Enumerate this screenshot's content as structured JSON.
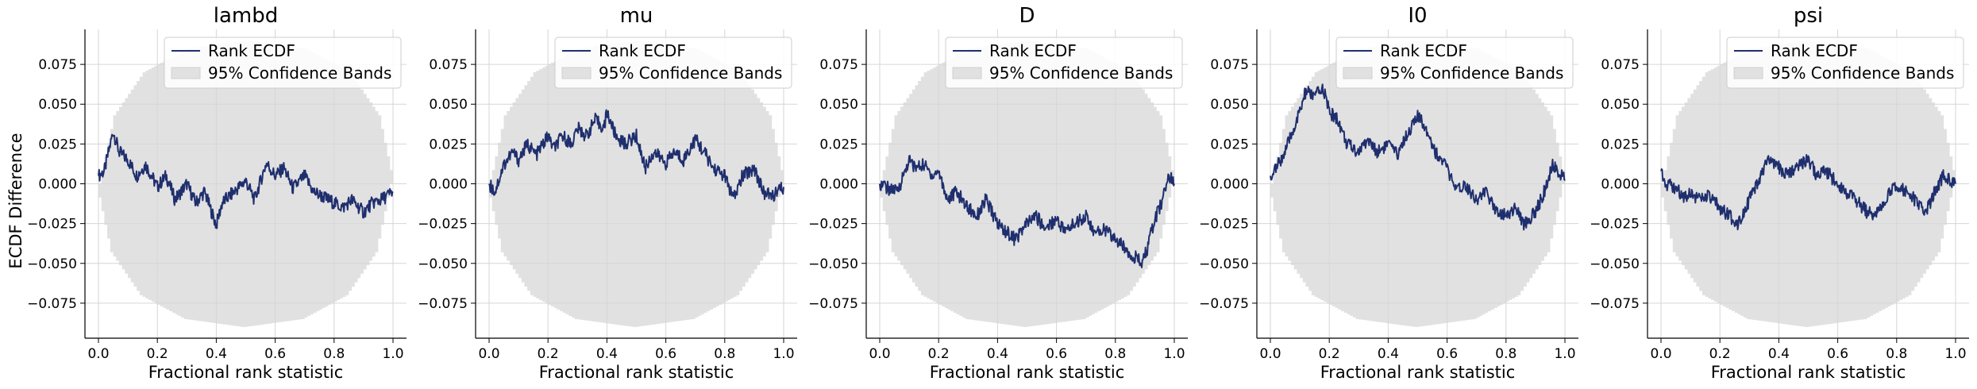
{
  "figure": {
    "ylabel": "ECDF Difference",
    "xlabel": "Fractional rank statistic",
    "legend": {
      "line": "Rank ECDF",
      "band": "95% Confidence Bands"
    },
    "colors": {
      "line": "#1f2f6e",
      "band": "#e1e1e1",
      "grid": "#d6d6d6"
    }
  },
  "chart_data": [
    {
      "type": "line",
      "title": "lambd",
      "xlabel": "Fractional rank statistic",
      "ylabel": "ECDF Difference",
      "xlim": [
        0,
        1
      ],
      "ylim": [
        -0.097,
        0.097
      ],
      "xticks": [
        "0.0",
        "0.2",
        "0.4",
        "0.6",
        "0.8",
        "1.0"
      ],
      "yticks": [
        "0.075",
        "0.050",
        "0.025",
        "0.000",
        "−0.025",
        "−0.050",
        "−0.075"
      ],
      "grid": true,
      "legend_position": "top-right",
      "series": [
        {
          "name": "Rank ECDF",
          "x": [
            0,
            0.02,
            0.05,
            0.07,
            0.1,
            0.13,
            0.16,
            0.2,
            0.23,
            0.26,
            0.3,
            0.33,
            0.36,
            0.4,
            0.42,
            0.46,
            0.5,
            0.53,
            0.57,
            0.6,
            0.63,
            0.66,
            0.7,
            0.73,
            0.76,
            0.8,
            0.83,
            0.86,
            0.9,
            0.93,
            0.96,
            1.0
          ],
          "y": [
            0.005,
            0.008,
            0.033,
            0.02,
            0.015,
            0.005,
            0.012,
            -0.002,
            0.005,
            -0.01,
            0.0,
            -0.012,
            -0.005,
            -0.026,
            -0.012,
            -0.005,
            0.002,
            -0.01,
            0.013,
            0.005,
            0.01,
            -0.003,
            0.005,
            -0.005,
            -0.008,
            -0.012,
            -0.015,
            -0.01,
            -0.018,
            -0.012,
            -0.01,
            -0.005
          ]
        },
        {
          "name": "95% Confidence Bands",
          "x": [
            0,
            0.05,
            0.15,
            0.3,
            0.5,
            0.7,
            0.85,
            0.95,
            1.0
          ],
          "upper": [
            0,
            0.043,
            0.07,
            0.085,
            0.09,
            0.085,
            0.07,
            0.043,
            0
          ],
          "lower": [
            0,
            -0.043,
            -0.07,
            -0.085,
            -0.09,
            -0.085,
            -0.07,
            -0.043,
            0
          ]
        }
      ]
    },
    {
      "type": "line",
      "title": "mu",
      "xlabel": "Fractional rank statistic",
      "ylabel": "",
      "xlim": [
        0,
        1
      ],
      "ylim": [
        -0.097,
        0.097
      ],
      "xticks": [
        "0.0",
        "0.2",
        "0.4",
        "0.6",
        "0.8",
        "1.0"
      ],
      "yticks": [
        "0.075",
        "0.050",
        "0.025",
        "0.000",
        "−0.025",
        "−0.050",
        "−0.075"
      ],
      "grid": true,
      "legend_position": "top-right",
      "series": [
        {
          "name": "Rank ECDF",
          "x": [
            0,
            0.02,
            0.05,
            0.08,
            0.1,
            0.13,
            0.16,
            0.2,
            0.22,
            0.25,
            0.28,
            0.3,
            0.33,
            0.36,
            0.39,
            0.4,
            0.43,
            0.46,
            0.5,
            0.53,
            0.56,
            0.6,
            0.63,
            0.66,
            0.7,
            0.73,
            0.76,
            0.8,
            0.83,
            0.86,
            0.9,
            0.93,
            0.96,
            1.0
          ],
          "y": [
            0.0,
            -0.005,
            0.012,
            0.02,
            0.015,
            0.025,
            0.018,
            0.03,
            0.022,
            0.03,
            0.025,
            0.035,
            0.03,
            0.04,
            0.035,
            0.045,
            0.03,
            0.025,
            0.03,
            0.01,
            0.02,
            0.013,
            0.02,
            0.015,
            0.028,
            0.02,
            0.01,
            0.005,
            -0.01,
            0.005,
            0.01,
            -0.005,
            -0.008,
            -0.002
          ]
        },
        {
          "name": "95% Confidence Bands",
          "x": [
            0,
            0.05,
            0.15,
            0.3,
            0.5,
            0.7,
            0.85,
            0.95,
            1.0
          ],
          "upper": [
            0,
            0.043,
            0.07,
            0.085,
            0.09,
            0.085,
            0.07,
            0.043,
            0
          ],
          "lower": [
            0,
            -0.043,
            -0.07,
            -0.085,
            -0.09,
            -0.085,
            -0.07,
            -0.043,
            0
          ]
        }
      ]
    },
    {
      "type": "line",
      "title": "D",
      "xlabel": "Fractional rank statistic",
      "ylabel": "",
      "xlim": [
        0,
        1
      ],
      "ylim": [
        -0.097,
        0.097
      ],
      "xticks": [
        "0.0",
        "0.2",
        "0.4",
        "0.6",
        "0.8",
        "1.0"
      ],
      "yticks": [
        "0.075",
        "0.050",
        "0.025",
        "0.000",
        "−0.025",
        "−0.050",
        "−0.075"
      ],
      "grid": true,
      "legend_position": "top-right",
      "series": [
        {
          "name": "Rank ECDF",
          "x": [
            0,
            0.03,
            0.06,
            0.08,
            0.1,
            0.12,
            0.15,
            0.18,
            0.2,
            0.23,
            0.26,
            0.3,
            0.33,
            0.36,
            0.4,
            0.43,
            0.46,
            0.5,
            0.53,
            0.56,
            0.6,
            0.63,
            0.66,
            0.7,
            0.73,
            0.76,
            0.8,
            0.83,
            0.86,
            0.89,
            0.91,
            0.93,
            0.96,
            0.98,
            1.0
          ],
          "y": [
            0.0,
            -0.003,
            -0.005,
            0.005,
            0.015,
            0.01,
            0.012,
            0.005,
            0.008,
            -0.01,
            -0.005,
            -0.015,
            -0.02,
            -0.01,
            -0.025,
            -0.03,
            -0.035,
            -0.025,
            -0.02,
            -0.028,
            -0.022,
            -0.03,
            -0.025,
            -0.02,
            -0.032,
            -0.028,
            -0.035,
            -0.04,
            -0.045,
            -0.05,
            -0.04,
            -0.025,
            -0.01,
            0.005,
            0.0
          ]
        },
        {
          "name": "95% Confidence Bands",
          "x": [
            0,
            0.05,
            0.15,
            0.3,
            0.5,
            0.7,
            0.85,
            0.95,
            1.0
          ],
          "upper": [
            0,
            0.043,
            0.07,
            0.085,
            0.09,
            0.085,
            0.07,
            0.043,
            0
          ],
          "lower": [
            0,
            -0.043,
            -0.07,
            -0.085,
            -0.09,
            -0.085,
            -0.07,
            -0.043,
            0
          ]
        }
      ]
    },
    {
      "type": "line",
      "title": "I0",
      "xlabel": "Fractional rank statistic",
      "ylabel": "",
      "xlim": [
        0,
        1
      ],
      "ylim": [
        -0.097,
        0.097
      ],
      "xticks": [
        "0.0",
        "0.2",
        "0.4",
        "0.6",
        "0.8",
        "1.0"
      ],
      "yticks": [
        "0.075",
        "0.050",
        "0.025",
        "0.000",
        "−0.025",
        "−0.050",
        "−0.075"
      ],
      "grid": true,
      "legend_position": "top-right",
      "series": [
        {
          "name": "Rank ECDF",
          "x": [
            0,
            0.02,
            0.05,
            0.08,
            0.1,
            0.12,
            0.15,
            0.18,
            0.2,
            0.23,
            0.26,
            0.3,
            0.33,
            0.36,
            0.4,
            0.43,
            0.46,
            0.5,
            0.53,
            0.56,
            0.6,
            0.63,
            0.66,
            0.7,
            0.73,
            0.76,
            0.8,
            0.83,
            0.86,
            0.9,
            0.93,
            0.96,
            1.0
          ],
          "y": [
            0.005,
            0.01,
            0.02,
            0.035,
            0.045,
            0.058,
            0.055,
            0.06,
            0.045,
            0.04,
            0.025,
            0.02,
            0.028,
            0.02,
            0.025,
            0.018,
            0.03,
            0.042,
            0.035,
            0.02,
            0.01,
            -0.005,
            0.0,
            -0.01,
            -0.005,
            -0.015,
            -0.02,
            -0.015,
            -0.025,
            -0.018,
            -0.005,
            0.012,
            0.002
          ]
        },
        {
          "name": "95% Confidence Bands",
          "x": [
            0,
            0.05,
            0.15,
            0.3,
            0.5,
            0.7,
            0.85,
            0.95,
            1.0
          ],
          "upper": [
            0,
            0.043,
            0.07,
            0.085,
            0.09,
            0.085,
            0.07,
            0.043,
            0
          ],
          "lower": [
            0,
            -0.043,
            -0.07,
            -0.085,
            -0.09,
            -0.085,
            -0.07,
            -0.043,
            0
          ]
        }
      ]
    },
    {
      "type": "line",
      "title": "psi",
      "xlabel": "Fractional rank statistic",
      "ylabel": "",
      "xlim": [
        0,
        1
      ],
      "ylim": [
        -0.097,
        0.097
      ],
      "xticks": [
        "0.0",
        "0.2",
        "0.4",
        "0.6",
        "0.8",
        "1.0"
      ],
      "yticks": [
        "0.075",
        "0.050",
        "0.025",
        "0.000",
        "−0.025",
        "−0.050",
        "−0.075"
      ],
      "grid": true,
      "legend_position": "top-right",
      "series": [
        {
          "name": "Rank ECDF",
          "x": [
            0,
            0.02,
            0.05,
            0.08,
            0.1,
            0.13,
            0.16,
            0.2,
            0.23,
            0.26,
            0.3,
            0.33,
            0.36,
            0.4,
            0.43,
            0.46,
            0.5,
            0.53,
            0.56,
            0.6,
            0.63,
            0.66,
            0.7,
            0.73,
            0.76,
            0.8,
            0.83,
            0.86,
            0.9,
            0.93,
            0.96,
            1.0
          ],
          "y": [
            0.008,
            0.0,
            -0.003,
            -0.008,
            -0.005,
            -0.01,
            -0.008,
            -0.015,
            -0.02,
            -0.025,
            -0.01,
            0.0,
            0.015,
            0.01,
            0.005,
            0.012,
            0.015,
            0.005,
            0.008,
            0.0,
            -0.005,
            -0.01,
            -0.018,
            -0.02,
            -0.01,
            0.0,
            -0.005,
            -0.01,
            -0.018,
            -0.005,
            0.005,
            0.0
          ]
        },
        {
          "name": "95% Confidence Bands",
          "x": [
            0,
            0.05,
            0.15,
            0.3,
            0.5,
            0.7,
            0.85,
            0.95,
            1.0
          ],
          "upper": [
            0,
            0.043,
            0.07,
            0.085,
            0.09,
            0.085,
            0.07,
            0.043,
            0
          ],
          "lower": [
            0,
            -0.043,
            -0.07,
            -0.085,
            -0.09,
            -0.085,
            -0.07,
            -0.043,
            0
          ]
        }
      ]
    }
  ]
}
